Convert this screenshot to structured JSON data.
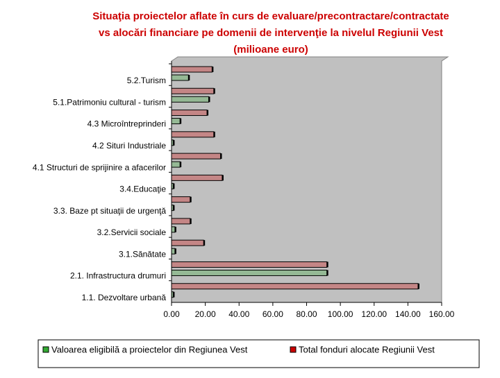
{
  "chart_data": {
    "type": "bar",
    "orientation": "horizontal",
    "title": [
      "Situaţia proiectelor aflate în curs de evaluare/precontractare/contractate",
      "vs alocări financiare pe domenii de intervenţie la nivelul Regiunii Vest",
      "(milioane euro)"
    ],
    "categories": [
      "5.2.Turism",
      "5.1.Patrimoniu cultural - turism",
      "4.3 Microîntreprinderi",
      "4.2 Situri Industriale",
      "4.1 Structuri de sprijinire a afacerilor",
      "3.4.Educaţie",
      "3.3. Baze pt situaţii de urgenţă",
      "3.2.Servicii sociale",
      "3.1.Sănătate",
      "2.1. Infrastructura drumuri",
      "1.1. Dezvoltare urbană"
    ],
    "series": [
      {
        "name": "Total fonduri alocate Regiunii Vest",
        "color": "#cc0000",
        "values": [
          24,
          25,
          21,
          25,
          29,
          30,
          11,
          11,
          19,
          92,
          146
        ]
      },
      {
        "name": "Valoarea eligibilă a proiectelor din Regiunea Vest",
        "color": "#33aa33",
        "values": [
          10,
          22,
          5,
          1,
          5,
          1,
          1,
          2,
          2,
          92,
          1
        ]
      }
    ],
    "xlim": [
      0,
      160
    ],
    "xticks": [
      {
        "value": 0,
        "label": "0.00"
      },
      {
        "value": 20,
        "label": "20.00"
      },
      {
        "value": 40,
        "label": "40.00"
      },
      {
        "value": 60,
        "label": "60.00"
      },
      {
        "value": 80,
        "label": "80.00"
      },
      {
        "value": 100,
        "label": "100.00"
      },
      {
        "value": 120,
        "label": "120.00"
      },
      {
        "value": 140,
        "label": "140.00"
      },
      {
        "value": 160,
        "label": "160.00"
      }
    ]
  }
}
